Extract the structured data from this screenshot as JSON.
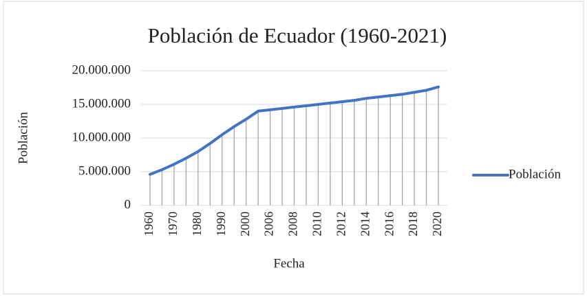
{
  "chart_data": {
    "type": "line",
    "title": "Población de Ecuador (1960-2021)",
    "x_label": "Fecha",
    "y_label": "Población",
    "categories": [
      "1960",
      null,
      "1970",
      null,
      "1980",
      null,
      "1990",
      null,
      "2000",
      null,
      "2006",
      null,
      "2008",
      null,
      "2010",
      null,
      "2012",
      null,
      "2014",
      null,
      "2016",
      null,
      "2018",
      null,
      "2020"
    ],
    "series": [
      {
        "name": "Población",
        "color": "#4472c4",
        "values": [
          4600000,
          5300000,
          6100000,
          7000000,
          8000000,
          9200000,
          10500000,
          11700000,
          12800000,
          14000000,
          14200000,
          14400000,
          14600000,
          14800000,
          15000000,
          15200000,
          15400000,
          15600000,
          15900000,
          16100000,
          16300000,
          16500000,
          16800000,
          17100000,
          17600000
        ]
      }
    ],
    "ylim": [
      0,
      20000000
    ],
    "yticks": [
      0,
      {
        "value": 5000000,
        "label": "5.000.000"
      },
      {
        "value": 10000000,
        "label": "10.000.000"
      },
      {
        "value": 15000000,
        "label": "15.000.000"
      },
      {
        "value": 20000000,
        "label": "20.000.000"
      }
    ],
    "grid": true,
    "drop_lines": true,
    "legend": "right"
  }
}
